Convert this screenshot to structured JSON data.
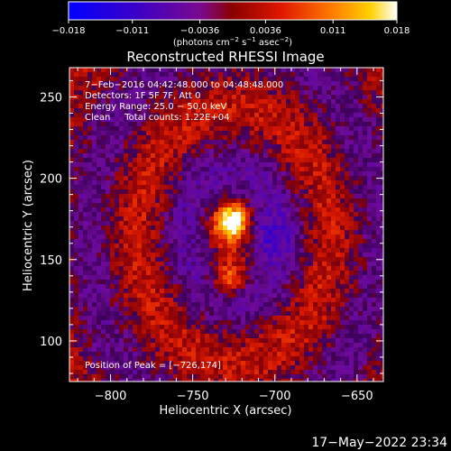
{
  "chart_data": {
    "type": "heatmap",
    "title": "Reconstructed RHESSI Image",
    "xlabel": "Heliocentric X (arcsec)",
    "ylabel": "Heliocentric Y (arcsec)",
    "xlim": [
      -825,
      -634
    ],
    "ylim": [
      75,
      268
    ],
    "x_ticks": [
      -800,
      -750,
      -700,
      -650
    ],
    "x_tick_labels": [
      "−800",
      "−750",
      "−700",
      "−650"
    ],
    "y_ticks": [
      100,
      150,
      200,
      250
    ],
    "y_tick_labels": [
      "100",
      "150",
      "200",
      "250"
    ],
    "colorbar": {
      "range": [
        -0.018,
        0.018
      ],
      "ticks": [
        -0.018,
        -0.011,
        -0.0036,
        0.0036,
        0.011,
        0.018
      ],
      "tick_labels": [
        "−0.018",
        "−0.011",
        "−0.0036",
        "0.0036",
        "0.011",
        "0.018"
      ],
      "unit_main": "(photons cm",
      "unit_exp1": "−2",
      "unit_mid1": " s",
      "unit_exp2": "−1",
      "unit_mid2": " asec",
      "unit_exp3": "−2",
      "unit_end": ")"
    },
    "annotations": [
      "7−Feb−2016 04:42:48.000 to 04:48:48.000",
      "Detectors: 1F 5F 7F, Att 0",
      "Energy Range: 25.0 − 50.0 keV",
      "Clean     Total counts: 1.22E+04"
    ],
    "peak_label": "Position of Peak = [−726,174]",
    "peak": {
      "x": -726,
      "y": 174
    },
    "sources": [
      {
        "x": -726,
        "y": 174,
        "value": 0.018
      },
      {
        "x": -728,
        "y": 138,
        "value": 0.011
      }
    ],
    "grid": false,
    "legend": "colorbar-top"
  },
  "timestamp": "17−May−2022 23:34",
  "colors": {
    "background": "#000000",
    "foreground": "#ffffff",
    "colormap": [
      "#0000ff",
      "#4b0082",
      "#8b008b",
      "#cc0000",
      "#ff5500",
      "#ffcc00",
      "#ffffff"
    ]
  }
}
